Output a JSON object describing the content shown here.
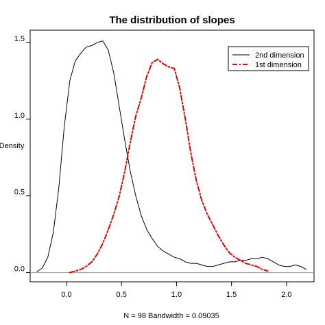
{
  "chart_data": {
    "type": "line",
    "title": "The distribution of slopes",
    "xlabel": "N = 98   Bandwidth = 0.09035",
    "ylabel": "Density",
    "xlim": [
      -0.33,
      2.25
    ],
    "ylim": [
      -0.06,
      1.58
    ],
    "xticks": [
      0.0,
      0.5,
      1.0,
      1.5,
      2.0
    ],
    "xtick_labels": [
      "0.0",
      "0.5",
      "1.0",
      "1.5",
      "2.0"
    ],
    "yticks": [
      0.0,
      0.5,
      1.0,
      1.5
    ],
    "ytick_labels": [
      "0.0",
      "0.5",
      "1.0",
      "1.5"
    ],
    "grid": false,
    "legend_position": "top-right",
    "baseline": 0,
    "series": [
      {
        "name": "2nd dimension",
        "color": "#000000",
        "style": "solid",
        "x": [
          -0.27,
          -0.22,
          -0.17,
          -0.12,
          -0.07,
          -0.02,
          0.03,
          0.08,
          0.13,
          0.18,
          0.23,
          0.28,
          0.33,
          0.38,
          0.43,
          0.48,
          0.53,
          0.58,
          0.63,
          0.68,
          0.73,
          0.78,
          0.83,
          0.88,
          0.93,
          0.98,
          1.03,
          1.08,
          1.13,
          1.18,
          1.23,
          1.28,
          1.33,
          1.38,
          1.43,
          1.48,
          1.53,
          1.58,
          1.63,
          1.68,
          1.73,
          1.78,
          1.83,
          1.88,
          1.93,
          1.98,
          2.03,
          2.08,
          2.13,
          2.18
        ],
        "y": [
          0.005,
          0.03,
          0.1,
          0.26,
          0.55,
          0.95,
          1.25,
          1.38,
          1.43,
          1.47,
          1.48,
          1.5,
          1.51,
          1.45,
          1.3,
          1.08,
          0.86,
          0.66,
          0.5,
          0.37,
          0.28,
          0.22,
          0.17,
          0.14,
          0.12,
          0.1,
          0.09,
          0.07,
          0.06,
          0.06,
          0.05,
          0.04,
          0.04,
          0.05,
          0.06,
          0.07,
          0.07,
          0.08,
          0.08,
          0.09,
          0.09,
          0.1,
          0.09,
          0.07,
          0.05,
          0.04,
          0.04,
          0.05,
          0.04,
          0.02
        ]
      },
      {
        "name": "1st dimension",
        "color": "#e30000",
        "style": "dotdash",
        "x": [
          0.03,
          0.08,
          0.13,
          0.18,
          0.23,
          0.28,
          0.33,
          0.38,
          0.43,
          0.48,
          0.53,
          0.58,
          0.63,
          0.68,
          0.73,
          0.78,
          0.83,
          0.88,
          0.93,
          0.98,
          1.03,
          1.08,
          1.13,
          1.18,
          1.23,
          1.28,
          1.33,
          1.38,
          1.43,
          1.48,
          1.53,
          1.58,
          1.63,
          1.68,
          1.73,
          1.78,
          1.83
        ],
        "y": [
          0.0,
          0.01,
          0.02,
          0.04,
          0.07,
          0.12,
          0.19,
          0.28,
          0.38,
          0.5,
          0.66,
          0.85,
          1.02,
          1.14,
          1.28,
          1.37,
          1.39,
          1.36,
          1.34,
          1.33,
          1.2,
          1.0,
          0.78,
          0.6,
          0.47,
          0.38,
          0.31,
          0.24,
          0.18,
          0.13,
          0.1,
          0.08,
          0.06,
          0.05,
          0.04,
          0.02,
          0.01
        ]
      }
    ]
  }
}
